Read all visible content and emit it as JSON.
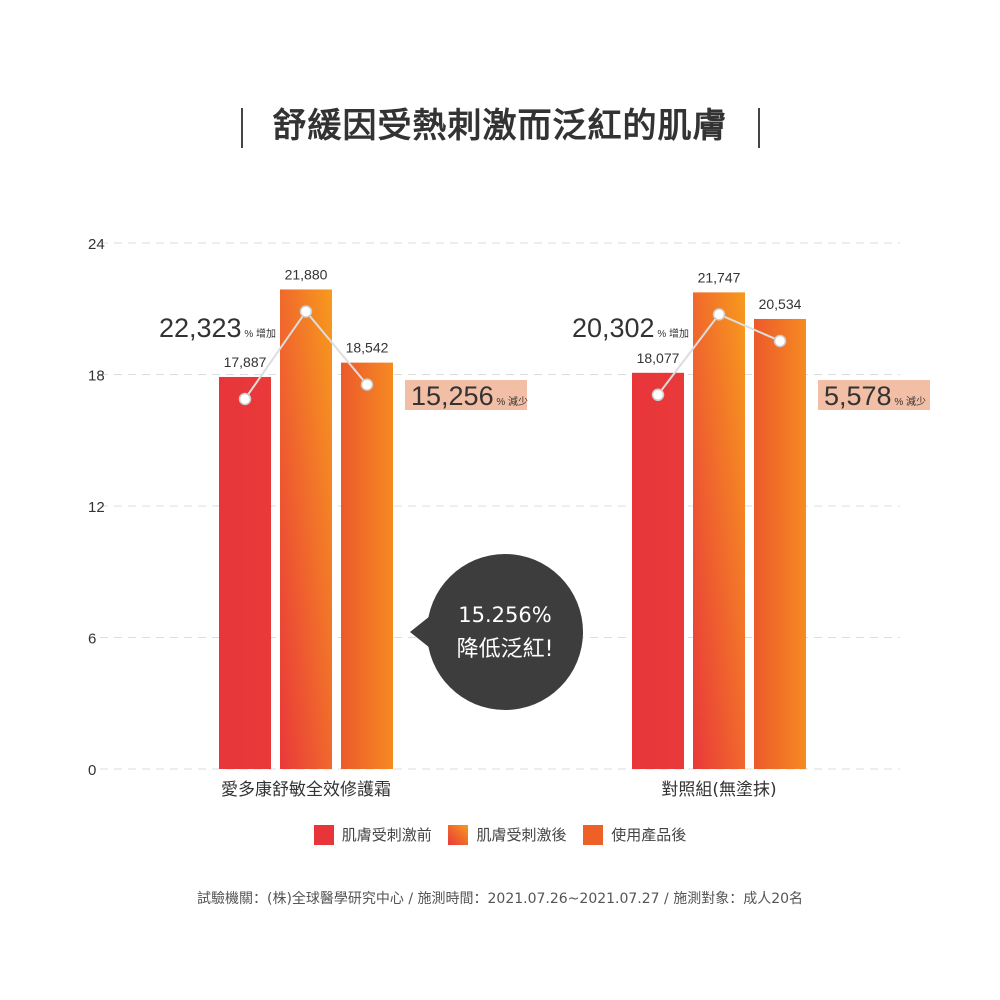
{
  "title": "舒緩因受熱刺激而泛紅的肌膚",
  "chart_data": {
    "type": "bar",
    "title": "舒緩因受熱刺激而泛紅的肌膚",
    "categories": [
      "愛多康舒敏全效修護霜",
      "對照組(無塗抹)"
    ],
    "series": [
      {
        "name": "肌膚受刺激前",
        "values": [
          17.887,
          18.077
        ],
        "labels": [
          "17,887",
          "18,077"
        ],
        "color": "#e8353a"
      },
      {
        "name": "肌膚受刺激後",
        "values": [
          21.88,
          21.747
        ],
        "labels": [
          "21,880",
          "21,747"
        ],
        "color": "#f06a2a"
      },
      {
        "name": "使用產品後",
        "values": [
          18.542,
          20.534
        ],
        "labels": [
          "18,542",
          "20,534"
        ],
        "color": "#ef5f28"
      }
    ],
    "ylim": [
      0,
      24
    ],
    "yticks": [
      "0",
      "6",
      "12",
      "18",
      "24"
    ],
    "grid": true,
    "legend": "bottom",
    "annotations": [
      {
        "value": "22,323",
        "unit": "%",
        "text": "增加"
      },
      {
        "value": "15,256",
        "unit": "%",
        "text": "減少"
      },
      {
        "value": "20,302",
        "unit": "%",
        "text": "增加"
      },
      {
        "value": "5,578",
        "unit": "%",
        "text": "減少"
      }
    ],
    "callout": [
      "15.256%",
      "降低泛紅!"
    ]
  },
  "footer": "試驗機關：(株)全球醫學研究中心 / 施測時間：2021.07.26~2021.07.27 / 施測對象：成人20名"
}
